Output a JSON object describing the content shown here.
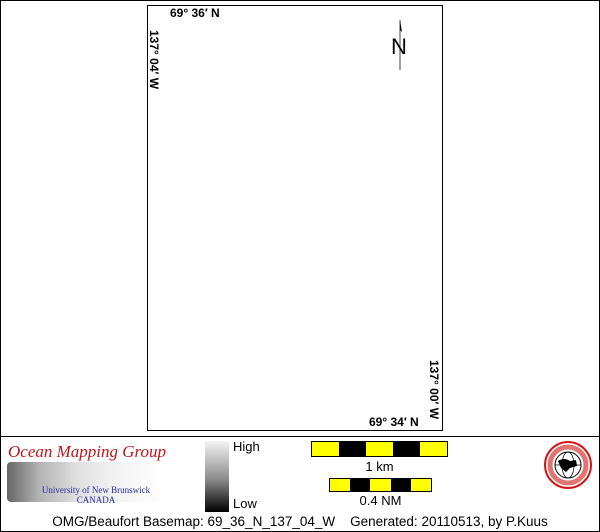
{
  "map": {
    "top_left_lat": "69° 36′ N",
    "top_left_lon": "137° 04′ W",
    "bottom_right_lat": "69° 34′ N",
    "bottom_right_lon": "137° 00′ W",
    "north_arrow": "N"
  },
  "legend": {
    "logo_title": "Ocean Mapping Group",
    "logo_university": "University of New Brunswick",
    "logo_country": "CANADA",
    "colorbar_high": "High",
    "colorbar_low": "Low",
    "scale_km_label": "1 km",
    "scale_nm_label": "0.4 NM",
    "colors": {
      "scale_light": "#ffff00",
      "scale_dark": "#000000",
      "logo_title": "#c0141c",
      "logo_text": "#2a2aa0"
    }
  },
  "footer": {
    "basemap": "OMG/Beaufort Basemap: 69_36_N_137_04_W",
    "generated": "Generated: 20110513, by P.Kuus"
  }
}
